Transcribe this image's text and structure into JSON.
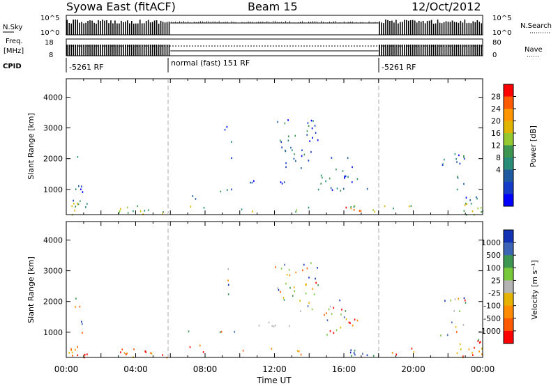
{
  "header": {
    "title": "Syowa East (fitACF)",
    "beam": "Beam 15",
    "date": "12/Oct/2012"
  },
  "noise_panel": {
    "left_label": "N.Sky",
    "right_label": "N.Search",
    "left_ticks": [
      "10^5",
      "10^0"
    ],
    "right_ticks": [
      "10^5",
      "10^0"
    ]
  },
  "freq_panel": {
    "left_label_1": "Freq.",
    "left_label_2": "[MHz]",
    "right_label": "Nave",
    "left_ticks": [
      "18",
      "8"
    ],
    "right_ticks": [
      "80",
      "0"
    ]
  },
  "cpid": {
    "label": "CPID",
    "segments": [
      {
        "text": "-5261 RF",
        "start_hour": 0
      },
      {
        "text": "normal (fast) 151 RF",
        "start_hour": 6
      },
      {
        "text": "-5261 RF",
        "start_hour": 18
      }
    ]
  },
  "chart_data": [
    {
      "type": "heatmap",
      "name": "power",
      "ylabel": "Slant Range [km]",
      "xlabel": "",
      "x_range_hours": [
        0,
        24
      ],
      "ylim": [
        180,
        4600
      ],
      "y_ticks": [
        1000,
        2000,
        3000,
        4000
      ],
      "colorbar": {
        "label": "Power [dB]",
        "ticks": [
          "28",
          "24",
          "20",
          "16",
          "12",
          "8",
          "4"
        ],
        "colors": [
          "#ff0000",
          "#ff5a00",
          "#ff9600",
          "#e1b400",
          "#96c832",
          "#3c9650",
          "#288c78",
          "#1e5aa0",
          "#143cc8",
          "#0000ff"
        ]
      }
    },
    {
      "type": "heatmap",
      "name": "velocity",
      "ylabel": "Slant Range [km]",
      "xlabel": "Time UT",
      "x_range_hours": [
        0,
        24
      ],
      "x_ticks": [
        "00:00",
        "04:00",
        "08:00",
        "12:00",
        "16:00",
        "20:00",
        "00:00"
      ],
      "ylim": [
        180,
        4600
      ],
      "y_ticks": [
        1000,
        2000,
        3000,
        4000
      ],
      "colorbar": {
        "label": "Velocity [m s⁻¹]",
        "ticks": [
          "1000",
          "500",
          "100",
          "25",
          "-25",
          "-100",
          "-500",
          "-1000"
        ],
        "colors": [
          "#1432b4",
          "#3c64b4",
          "#3c9650",
          "#78c83c",
          "#b4b4b4",
          "#e6b400",
          "#ff8c00",
          "#ff5a00",
          "#ff0000"
        ]
      }
    }
  ]
}
